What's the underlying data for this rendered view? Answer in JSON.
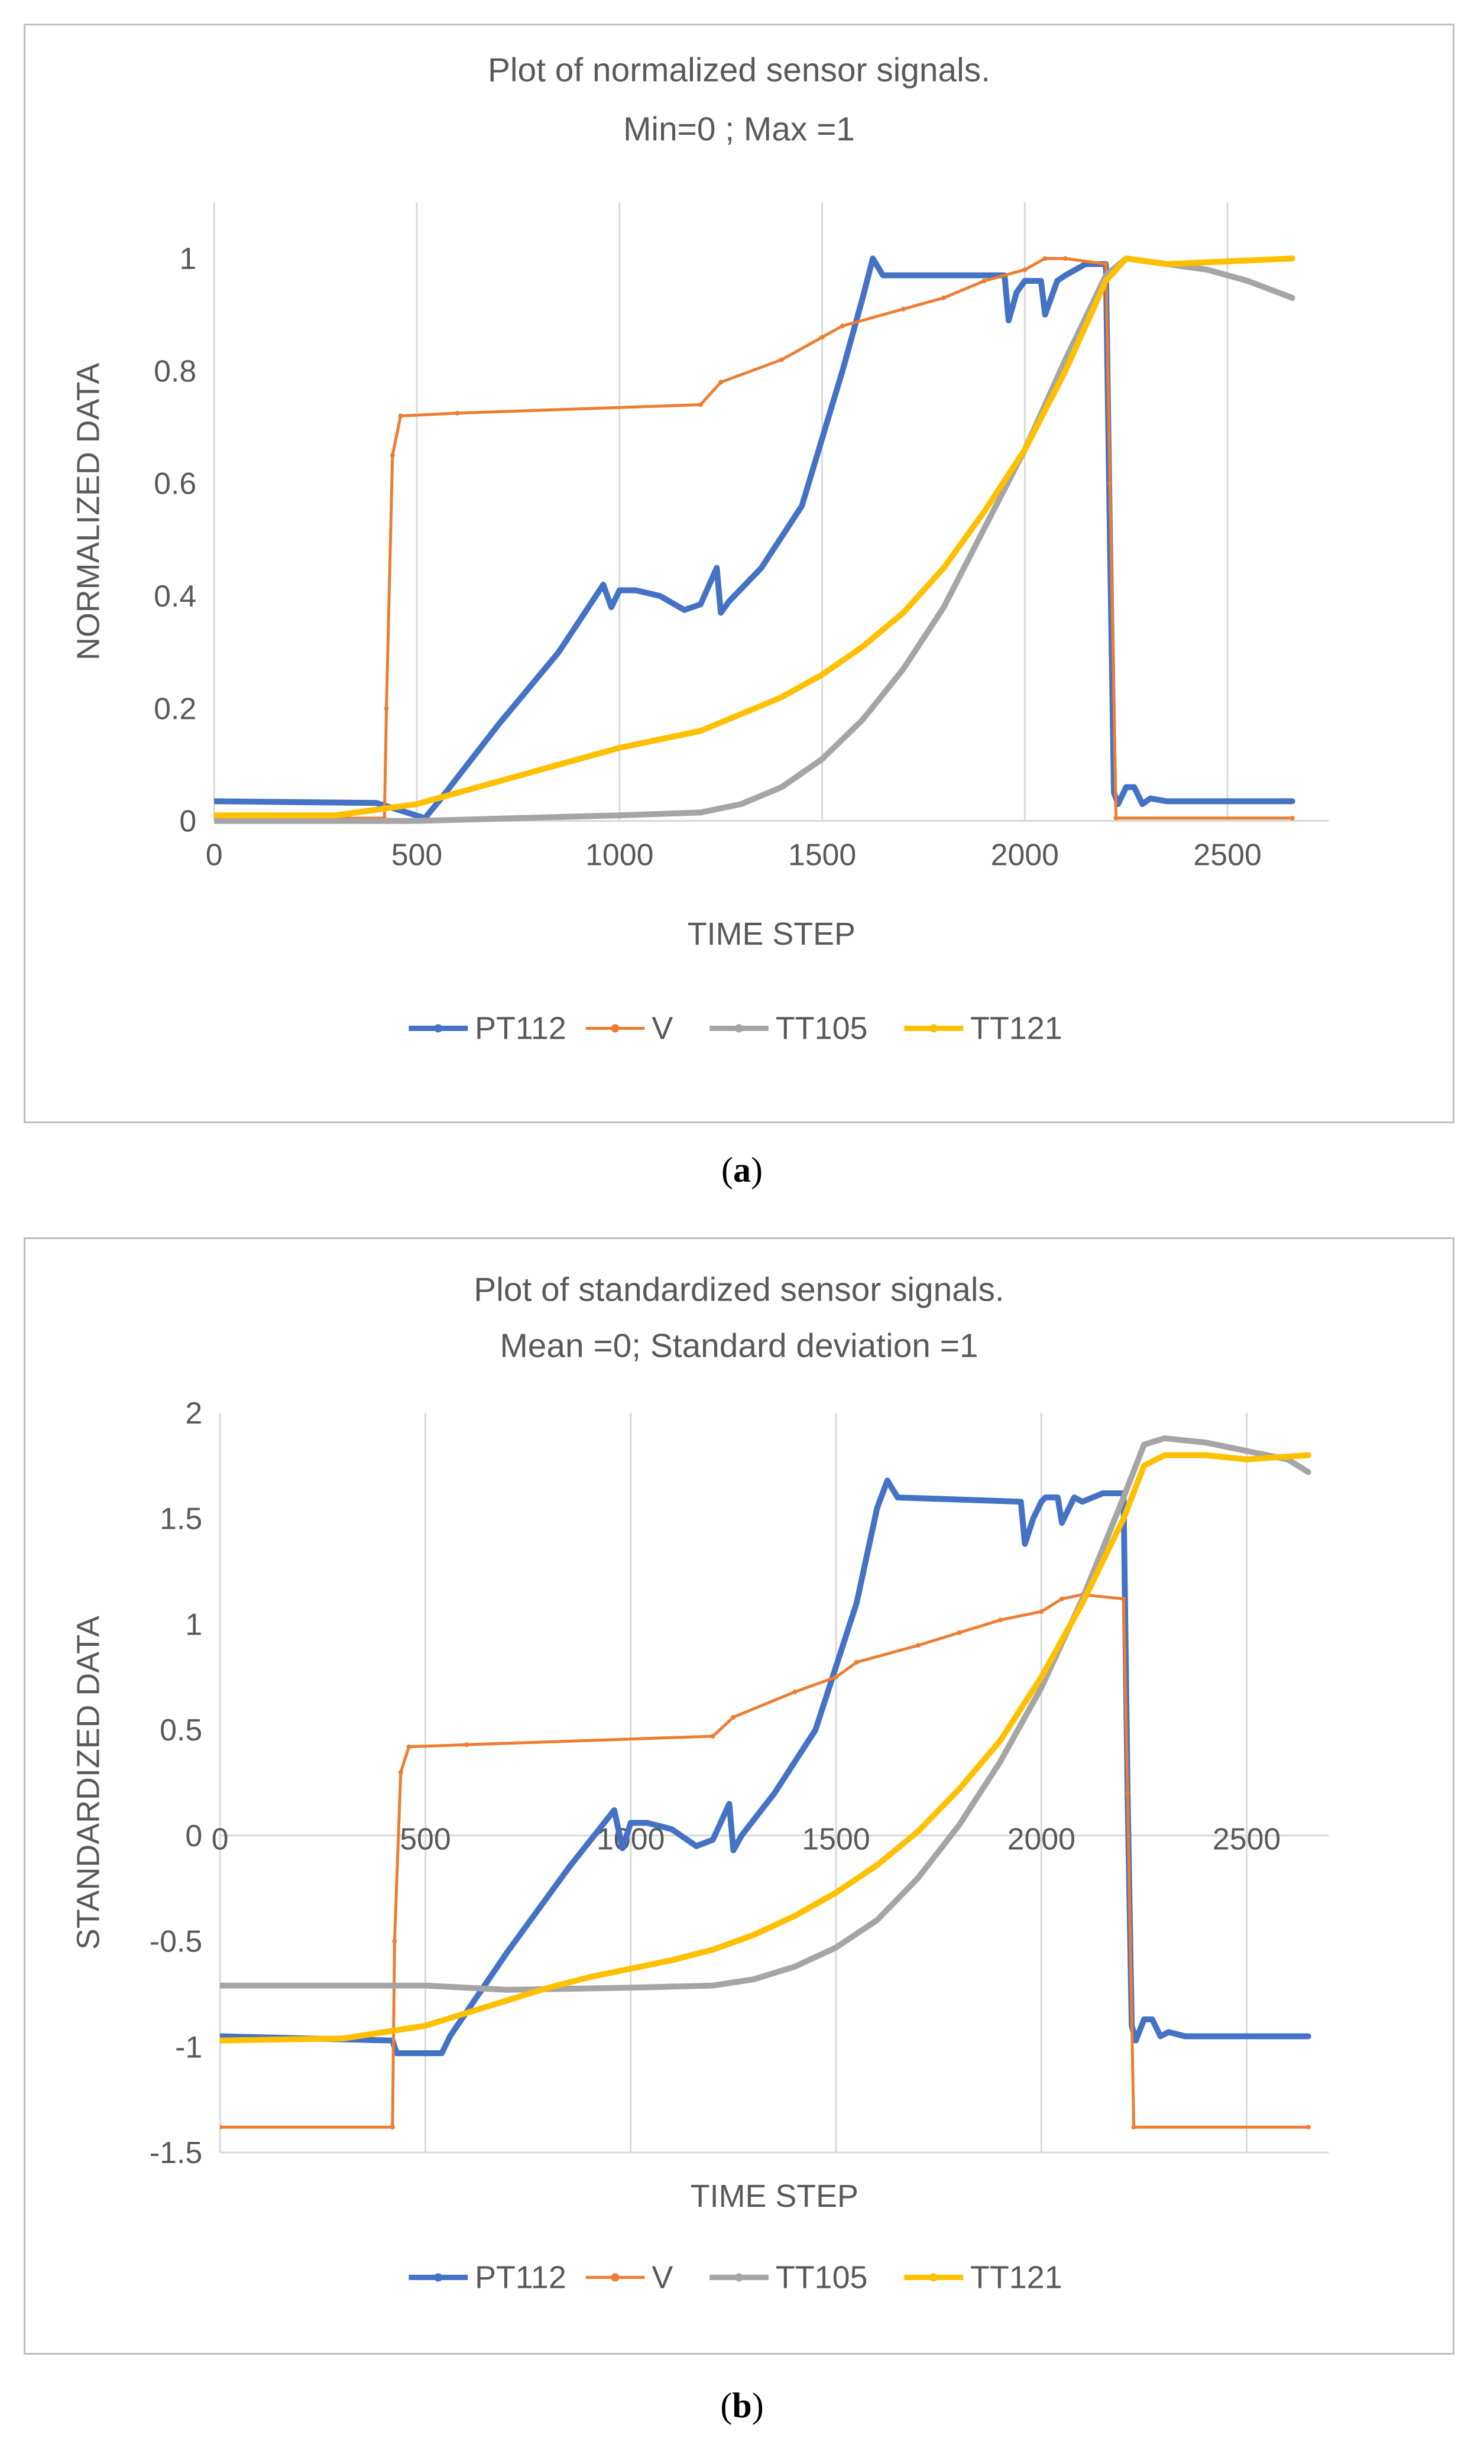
{
  "figure": {
    "caption_a_label": "a",
    "caption_b_label": "b"
  },
  "chart_data": [
    {
      "type": "line",
      "title": "Plot of normalized sensor signals.",
      "subtitle": "Min=0 ; Max =1",
      "xlabel": "TIME STEP",
      "ylabel": "NORMALIZED DATA",
      "xlim": [
        0,
        2750
      ],
      "ylim": [
        0,
        1.1
      ],
      "x_ticks": [
        0,
        500,
        1000,
        1500,
        2000,
        2500
      ],
      "x_tick_labels": [
        "0",
        "500",
        "1000",
        "1500",
        "2000",
        "2500"
      ],
      "y_ticks": [
        0,
        0.2,
        0.4,
        0.6,
        0.8,
        1
      ],
      "y_tick_labels": [
        "0",
        "0.2",
        "0.4",
        "0.6",
        "0.8",
        "1"
      ],
      "x_tick_position": "bottom",
      "grid": "vertical",
      "legend": "bottom",
      "series": [
        {
          "name": "PT112",
          "color": "#4472c4",
          "x": [
            0,
            400,
            520,
            560,
            700,
            850,
            960,
            980,
            1000,
            1040,
            1100,
            1160,
            1200,
            1240,
            1250,
            1270,
            1350,
            1450,
            1550,
            1600,
            1625,
            1650,
            1950,
            1960,
            1980,
            2000,
            2010,
            2040,
            2050,
            2080,
            2100,
            2150,
            2200,
            2210,
            2220,
            2230,
            2250,
            2270,
            2290,
            2310,
            2350,
            2660
          ],
          "y": [
            0.035,
            0.032,
            0.005,
            0.04,
            0.17,
            0.3,
            0.42,
            0.38,
            0.41,
            0.41,
            0.4,
            0.375,
            0.385,
            0.45,
            0.37,
            0.39,
            0.45,
            0.56,
            0.8,
            0.93,
            1.0,
            0.97,
            0.97,
            0.89,
            0.94,
            0.96,
            0.96,
            0.96,
            0.9,
            0.96,
            0.97,
            0.99,
            0.99,
            0.5,
            0.05,
            0.03,
            0.06,
            0.06,
            0.03,
            0.04,
            0.035,
            0.035
          ]
        },
        {
          "name": "V",
          "color": "#ed7d31",
          "x": [
            0,
            420,
            425,
            440,
            460,
            600,
            1200,
            1250,
            1400,
            1500,
            1550,
            1700,
            1800,
            1900,
            2000,
            2050,
            2100,
            2200,
            2210,
            2225,
            2660
          ],
          "y": [
            0.005,
            0.005,
            0.2,
            0.65,
            0.72,
            0.725,
            0.74,
            0.78,
            0.82,
            0.86,
            0.88,
            0.91,
            0.93,
            0.96,
            0.98,
            1.0,
            1.0,
            0.99,
            0.6,
            0.005,
            0.005
          ]
        },
        {
          "name": "TT105",
          "color": "#a5a5a5",
          "x": [
            0,
            500,
            1000,
            1200,
            1300,
            1400,
            1500,
            1600,
            1700,
            1800,
            1900,
            2000,
            2100,
            2200,
            2250,
            2350,
            2450,
            2550,
            2660
          ],
          "y": [
            0.0,
            0.0,
            0.01,
            0.015,
            0.03,
            0.06,
            0.11,
            0.18,
            0.27,
            0.38,
            0.52,
            0.66,
            0.82,
            0.97,
            1.0,
            0.99,
            0.98,
            0.96,
            0.93
          ]
        },
        {
          "name": "TT121",
          "color": "#ffc000",
          "x": [
            0,
            300,
            500,
            600,
            700,
            800,
            900,
            1000,
            1100,
            1200,
            1300,
            1400,
            1500,
            1600,
            1700,
            1800,
            1900,
            2000,
            2100,
            2200,
            2250,
            2350,
            2660
          ],
          "y": [
            0.01,
            0.01,
            0.03,
            0.05,
            0.07,
            0.09,
            0.11,
            0.13,
            0.145,
            0.16,
            0.19,
            0.22,
            0.26,
            0.31,
            0.37,
            0.45,
            0.55,
            0.66,
            0.8,
            0.96,
            1.0,
            0.99,
            1.0
          ]
        }
      ]
    },
    {
      "type": "line",
      "title": "Plot of standardized sensor signals.",
      "subtitle": "Mean =0; Standard deviation =1",
      "xlabel": "TIME STEP",
      "ylabel": "STANDARDIZED DATA",
      "xlim": [
        0,
        2700
      ],
      "ylim": [
        -1.5,
        2
      ],
      "x_ticks": [
        0,
        500,
        1000,
        1500,
        2000,
        2500
      ],
      "x_tick_labels": [
        "0",
        "500",
        "1000",
        "1500",
        "2000",
        "2500"
      ],
      "y_ticks": [
        -1.5,
        -1,
        -0.5,
        0,
        0.5,
        1,
        1.5,
        2
      ],
      "y_tick_labels": [
        "-1.5",
        "-1",
        "-0.5",
        "0",
        "0.5",
        "1",
        "1.5",
        "2"
      ],
      "x_tick_position": "at-zero",
      "grid": "vertical",
      "legend": "bottom",
      "series": [
        {
          "name": "PT112",
          "color": "#4472c4",
          "x": [
            0,
            420,
            430,
            540,
            560,
            700,
            850,
            960,
            980,
            1000,
            1040,
            1100,
            1160,
            1200,
            1240,
            1250,
            1270,
            1350,
            1450,
            1550,
            1600,
            1625,
            1650,
            1950,
            1960,
            1980,
            2000,
            2010,
            2040,
            2050,
            2080,
            2100,
            2150,
            2200,
            2210,
            2220,
            2230,
            2250,
            2270,
            2290,
            2310,
            2350,
            2650
          ],
          "y": [
            -0.95,
            -0.97,
            -1.03,
            -1.03,
            -0.95,
            -0.55,
            -0.15,
            0.12,
            -0.06,
            0.06,
            0.06,
            0.03,
            -0.05,
            -0.02,
            0.15,
            -0.07,
            0.0,
            0.2,
            0.5,
            1.1,
            1.55,
            1.68,
            1.6,
            1.58,
            1.38,
            1.5,
            1.58,
            1.6,
            1.6,
            1.48,
            1.6,
            1.58,
            1.62,
            1.62,
            0.2,
            -0.9,
            -0.97,
            -0.87,
            -0.87,
            -0.95,
            -0.93,
            -0.95,
            -0.95
          ]
        },
        {
          "name": "V",
          "color": "#ed7d31",
          "x": [
            0,
            420,
            425,
            440,
            460,
            600,
            1200,
            1250,
            1400,
            1500,
            1550,
            1700,
            1800,
            1900,
            2000,
            2050,
            2100,
            2200,
            2210,
            2225,
            2650
          ],
          "y": [
            -1.38,
            -1.38,
            -0.5,
            0.3,
            0.42,
            0.43,
            0.47,
            0.56,
            0.68,
            0.75,
            0.82,
            0.9,
            0.96,
            1.02,
            1.06,
            1.12,
            1.14,
            1.12,
            0.2,
            -1.38,
            -1.38
          ]
        },
        {
          "name": "TT105",
          "color": "#a5a5a5",
          "x": [
            0,
            500,
            700,
            1000,
            1200,
            1300,
            1400,
            1500,
            1600,
            1700,
            1800,
            1900,
            2000,
            2100,
            2200,
            2250,
            2300,
            2400,
            2500,
            2600,
            2650
          ],
          "y": [
            -0.71,
            -0.71,
            -0.73,
            -0.72,
            -0.71,
            -0.68,
            -0.62,
            -0.53,
            -0.4,
            -0.2,
            0.05,
            0.35,
            0.7,
            1.12,
            1.6,
            1.85,
            1.88,
            1.86,
            1.82,
            1.78,
            1.72
          ]
        },
        {
          "name": "TT121",
          "color": "#ffc000",
          "x": [
            0,
            300,
            500,
            600,
            700,
            800,
            900,
            1000,
            1100,
            1200,
            1300,
            1400,
            1500,
            1600,
            1700,
            1800,
            1900,
            2000,
            2100,
            2200,
            2250,
            2300,
            2400,
            2500,
            2650
          ],
          "y": [
            -0.97,
            -0.96,
            -0.9,
            -0.84,
            -0.78,
            -0.72,
            -0.67,
            -0.63,
            -0.59,
            -0.54,
            -0.47,
            -0.38,
            -0.27,
            -0.14,
            0.02,
            0.22,
            0.45,
            0.75,
            1.1,
            1.5,
            1.75,
            1.8,
            1.8,
            1.78,
            1.8
          ]
        }
      ]
    }
  ]
}
